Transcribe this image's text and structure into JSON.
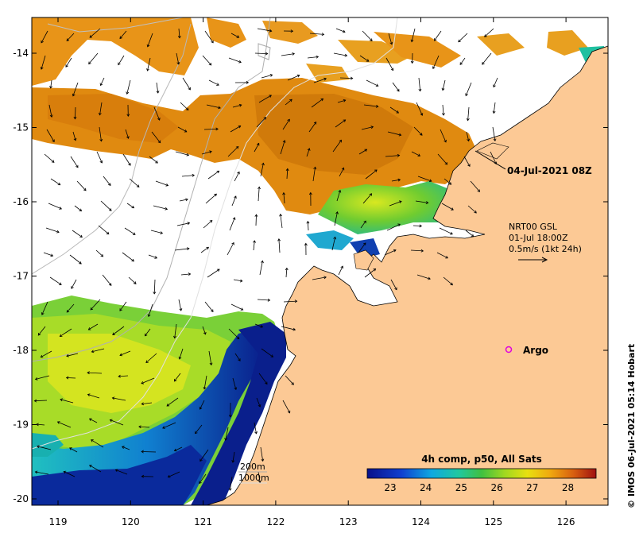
{
  "map": {
    "x_ticks": [
      "119",
      "120",
      "121",
      "122",
      "123",
      "124",
      "125",
      "126"
    ],
    "y_ticks": [
      "-14",
      "-15",
      "-16",
      "-17",
      "-18",
      "-19",
      "-20"
    ],
    "date_label": "04-Jul-2021 08Z",
    "current_info": {
      "line1": "NRT00 GSL",
      "line2": "01-Jul 18:00Z",
      "line3": "0.5m/s (1kt 24h)"
    },
    "argo_label": "Argo",
    "argo_color": "#e000e0",
    "depth_legend": {
      "line1": "200m",
      "line2": "1000m"
    },
    "colorbar": {
      "title": "4h comp, p50, All Sats",
      "labels": [
        "23",
        "24",
        "25",
        "26",
        "27",
        "28"
      ]
    },
    "credit": "© IMOS 06-Jul-2021 05:14 Hobart",
    "colors": {
      "land": "#fcc995",
      "sst_cold": "#0a1f8c",
      "sst_mid": "#3fb84a",
      "sst_warm": "#e08a10"
    }
  }
}
